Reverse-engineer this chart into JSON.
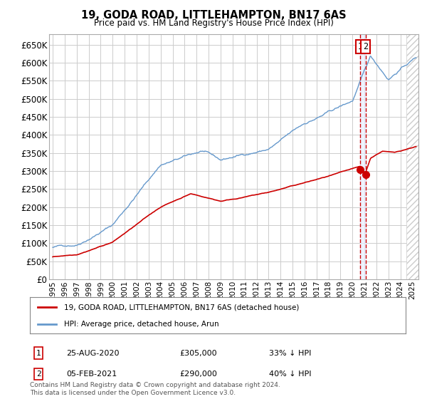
{
  "title": "19, GODA ROAD, LITTLEHAMPTON, BN17 6AS",
  "subtitle": "Price paid vs. HM Land Registry's House Price Index (HPI)",
  "ylim": [
    0,
    680000
  ],
  "yticks": [
    0,
    50000,
    100000,
    150000,
    200000,
    250000,
    300000,
    350000,
    400000,
    450000,
    500000,
    550000,
    600000,
    650000
  ],
  "xlim_start": 1994.7,
  "xlim_end": 2025.5,
  "sale1_date": 2020.645,
  "sale1_price": 305000,
  "sale1_label": "1",
  "sale2_date": 2021.087,
  "sale2_price": 290000,
  "sale2_label": "2",
  "legend_label_red": "19, GODA ROAD, LITTLEHAMPTON, BN17 6AS (detached house)",
  "legend_label_blue": "HPI: Average price, detached house, Arun",
  "footer": "Contains HM Land Registry data © Crown copyright and database right 2024.\nThis data is licensed under the Open Government Licence v3.0.",
  "red_color": "#cc0000",
  "blue_color": "#6699cc",
  "bg_color": "#ffffff",
  "grid_color": "#cccccc",
  "hatch_start": 2024.5
}
